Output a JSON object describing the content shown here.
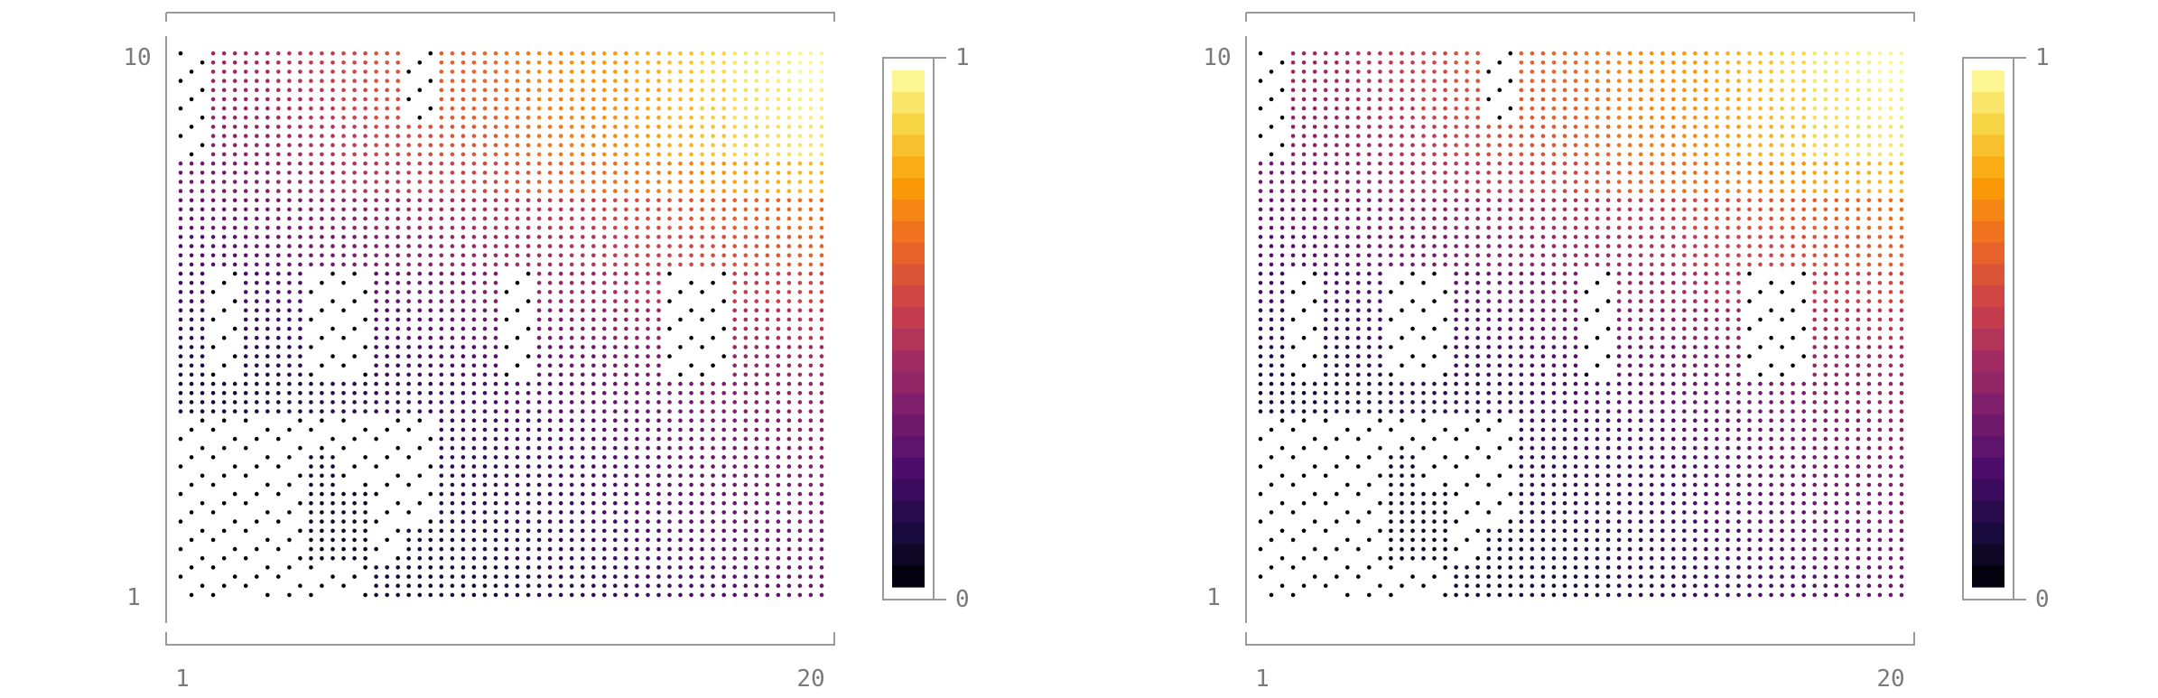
{
  "chart_data": [
    {
      "type": "heatmap",
      "title": "",
      "xlabel": "",
      "ylabel": "",
      "x_ticks": [
        "1",
        "20"
      ],
      "y_ticks": [
        "1",
        "10"
      ],
      "xlim": [
        1,
        20
      ],
      "ylim": [
        1,
        10
      ],
      "colorbar": {
        "min_label": "0",
        "max_label": "1",
        "range": [
          0,
          1
        ],
        "colormap": "inferno"
      },
      "rows": 15,
      "cols": 20,
      "values": [
        [
          0.0,
          0.0,
          0.0,
          0.0,
          0.0,
          0.0,
          0.1,
          0.08,
          0.12,
          0.1,
          0.12,
          0.15,
          0.16,
          0.18,
          0.2,
          0.22,
          0.24,
          0.26,
          0.28,
          0.3
        ],
        [
          0.0,
          0.0,
          0.0,
          0.0,
          0.05,
          0.06,
          0.0,
          0.1,
          0.12,
          0.14,
          0.15,
          0.16,
          0.18,
          0.2,
          0.22,
          0.24,
          0.26,
          0.28,
          0.3,
          0.32
        ],
        [
          0.0,
          0.0,
          0.0,
          0.0,
          0.06,
          0.07,
          0.0,
          0.0,
          0.14,
          0.15,
          0.17,
          0.18,
          0.2,
          0.22,
          0.24,
          0.26,
          0.28,
          0.3,
          0.32,
          0.34
        ],
        [
          0.0,
          0.0,
          0.0,
          0.0,
          0.08,
          0.0,
          0.0,
          0.0,
          0.16,
          0.17,
          0.19,
          0.2,
          0.22,
          0.24,
          0.26,
          0.28,
          0.3,
          0.32,
          0.34,
          0.36
        ],
        [
          0.0,
          0.0,
          0.0,
          0.0,
          0.0,
          0.0,
          0.0,
          0.0,
          0.18,
          0.19,
          0.21,
          0.22,
          0.24,
          0.26,
          0.28,
          0.3,
          0.32,
          0.34,
          0.36,
          0.38
        ],
        [
          0.1,
          0.1,
          0.12,
          0.12,
          0.14,
          0.15,
          0.16,
          0.17,
          0.2,
          0.22,
          0.24,
          0.25,
          0.27,
          0.29,
          0.3,
          0.32,
          0.34,
          0.36,
          0.38,
          0.4
        ],
        [
          0.12,
          0.0,
          0.14,
          0.15,
          0.0,
          0.0,
          0.19,
          0.2,
          0.22,
          0.24,
          0.0,
          0.28,
          0.3,
          0.32,
          0.34,
          0.0,
          0.0,
          0.4,
          0.42,
          0.44
        ],
        [
          0.16,
          0.0,
          0.18,
          0.2,
          0.0,
          0.0,
          0.24,
          0.26,
          0.28,
          0.3,
          0.0,
          0.34,
          0.36,
          0.38,
          0.4,
          0.0,
          0.0,
          0.46,
          0.48,
          0.5
        ],
        [
          0.2,
          0.0,
          0.22,
          0.24,
          0.0,
          0.0,
          0.28,
          0.3,
          0.32,
          0.35,
          0.0,
          0.4,
          0.42,
          0.45,
          0.48,
          0.0,
          0.0,
          0.52,
          0.54,
          0.56
        ],
        [
          0.24,
          0.26,
          0.28,
          0.3,
          0.32,
          0.34,
          0.36,
          0.38,
          0.4,
          0.42,
          0.44,
          0.46,
          0.48,
          0.52,
          0.55,
          0.56,
          0.58,
          0.6,
          0.62,
          0.64
        ],
        [
          0.28,
          0.3,
          0.32,
          0.34,
          0.36,
          0.38,
          0.4,
          0.42,
          0.44,
          0.46,
          0.48,
          0.5,
          0.52,
          0.56,
          0.58,
          0.6,
          0.62,
          0.64,
          0.66,
          0.68
        ],
        [
          0.32,
          0.34,
          0.36,
          0.4,
          0.44,
          0.48,
          0.5,
          0.52,
          0.54,
          0.56,
          0.6,
          0.64,
          0.66,
          0.68,
          0.7,
          0.72,
          0.76,
          0.8,
          0.82,
          0.84
        ],
        [
          0.0,
          0.38,
          0.4,
          0.44,
          0.48,
          0.52,
          0.56,
          0.58,
          0.6,
          0.62,
          0.66,
          0.7,
          0.72,
          0.74,
          0.78,
          0.82,
          0.86,
          0.9,
          0.92,
          0.94
        ],
        [
          0.0,
          0.4,
          0.42,
          0.46,
          0.5,
          0.55,
          0.58,
          0.0,
          0.62,
          0.64,
          0.68,
          0.72,
          0.74,
          0.76,
          0.8,
          0.84,
          0.88,
          0.92,
          0.94,
          0.96
        ],
        [
          0.0,
          0.42,
          0.44,
          0.48,
          0.52,
          0.56,
          0.6,
          0.0,
          0.64,
          0.66,
          0.7,
          0.74,
          0.76,
          0.78,
          0.82,
          0.86,
          0.9,
          0.94,
          0.96,
          0.98
        ]
      ],
      "grid": false,
      "legend": "none"
    },
    {
      "type": "heatmap",
      "title": "",
      "xlabel": "",
      "ylabel": "",
      "x_ticks": [
        "1",
        "20"
      ],
      "y_ticks": [
        "1",
        "10"
      ],
      "xlim": [
        1,
        20
      ],
      "ylim": [
        1,
        10
      ],
      "colorbar": {
        "min_label": "0",
        "max_label": "1",
        "range": [
          0,
          1
        ],
        "colormap": "inferno"
      },
      "rows": 15,
      "cols": 20,
      "values": [
        [
          0.0,
          0.0,
          0.0,
          0.0,
          0.0,
          0.0,
          0.1,
          0.08,
          0.12,
          0.1,
          0.12,
          0.15,
          0.16,
          0.18,
          0.2,
          0.22,
          0.24,
          0.26,
          0.28,
          0.3
        ],
        [
          0.0,
          0.0,
          0.0,
          0.0,
          0.05,
          0.06,
          0.0,
          0.1,
          0.12,
          0.14,
          0.15,
          0.16,
          0.18,
          0.2,
          0.22,
          0.24,
          0.26,
          0.28,
          0.3,
          0.32
        ],
        [
          0.0,
          0.0,
          0.0,
          0.0,
          0.06,
          0.07,
          0.0,
          0.0,
          0.14,
          0.15,
          0.17,
          0.18,
          0.2,
          0.22,
          0.24,
          0.26,
          0.28,
          0.3,
          0.32,
          0.34
        ],
        [
          0.0,
          0.0,
          0.0,
          0.0,
          0.08,
          0.0,
          0.0,
          0.0,
          0.16,
          0.17,
          0.19,
          0.2,
          0.22,
          0.24,
          0.26,
          0.28,
          0.3,
          0.32,
          0.34,
          0.36
        ],
        [
          0.0,
          0.0,
          0.0,
          0.0,
          0.0,
          0.0,
          0.0,
          0.0,
          0.18,
          0.19,
          0.21,
          0.22,
          0.24,
          0.26,
          0.28,
          0.3,
          0.32,
          0.34,
          0.36,
          0.38
        ],
        [
          0.1,
          0.1,
          0.12,
          0.12,
          0.14,
          0.15,
          0.16,
          0.17,
          0.2,
          0.22,
          0.24,
          0.25,
          0.27,
          0.29,
          0.3,
          0.32,
          0.34,
          0.36,
          0.38,
          0.4
        ],
        [
          0.12,
          0.0,
          0.14,
          0.15,
          0.0,
          0.0,
          0.19,
          0.2,
          0.22,
          0.24,
          0.0,
          0.28,
          0.3,
          0.32,
          0.34,
          0.0,
          0.0,
          0.4,
          0.42,
          0.44
        ],
        [
          0.16,
          0.0,
          0.18,
          0.2,
          0.0,
          0.0,
          0.24,
          0.26,
          0.28,
          0.3,
          0.0,
          0.34,
          0.36,
          0.38,
          0.4,
          0.0,
          0.0,
          0.46,
          0.48,
          0.5
        ],
        [
          0.2,
          0.0,
          0.22,
          0.24,
          0.0,
          0.0,
          0.28,
          0.3,
          0.32,
          0.35,
          0.0,
          0.4,
          0.42,
          0.45,
          0.48,
          0.0,
          0.0,
          0.52,
          0.54,
          0.56
        ],
        [
          0.24,
          0.26,
          0.28,
          0.3,
          0.32,
          0.34,
          0.36,
          0.38,
          0.4,
          0.42,
          0.44,
          0.46,
          0.48,
          0.52,
          0.55,
          0.56,
          0.58,
          0.6,
          0.62,
          0.64
        ],
        [
          0.28,
          0.3,
          0.32,
          0.34,
          0.36,
          0.38,
          0.4,
          0.42,
          0.44,
          0.46,
          0.48,
          0.5,
          0.52,
          0.56,
          0.58,
          0.6,
          0.62,
          0.64,
          0.66,
          0.68
        ],
        [
          0.32,
          0.34,
          0.36,
          0.4,
          0.44,
          0.48,
          0.5,
          0.52,
          0.54,
          0.56,
          0.6,
          0.64,
          0.66,
          0.68,
          0.7,
          0.72,
          0.76,
          0.8,
          0.82,
          0.84
        ],
        [
          0.0,
          0.38,
          0.4,
          0.44,
          0.48,
          0.52,
          0.56,
          0.58,
          0.6,
          0.62,
          0.66,
          0.7,
          0.72,
          0.74,
          0.78,
          0.82,
          0.86,
          0.9,
          0.92,
          0.94
        ],
        [
          0.0,
          0.4,
          0.42,
          0.46,
          0.5,
          0.55,
          0.58,
          0.0,
          0.62,
          0.64,
          0.68,
          0.72,
          0.74,
          0.76,
          0.8,
          0.84,
          0.88,
          0.92,
          0.94,
          0.96
        ],
        [
          0.0,
          0.42,
          0.44,
          0.48,
          0.52,
          0.56,
          0.6,
          0.0,
          0.64,
          0.66,
          0.7,
          0.74,
          0.76,
          0.78,
          0.82,
          0.86,
          0.9,
          0.94,
          0.96,
          0.98
        ]
      ],
      "grid": false,
      "legend": "none"
    }
  ],
  "colors": {
    "frame": "#9a9a9a",
    "tick_text": "#7a7a7a",
    "inferno": [
      "#000004",
      "#1b0c41",
      "#4a0c6b",
      "#781c6d",
      "#a52c60",
      "#cf4446",
      "#ed6925",
      "#fb9b06",
      "#f7d13d",
      "#fcffa4"
    ]
  }
}
